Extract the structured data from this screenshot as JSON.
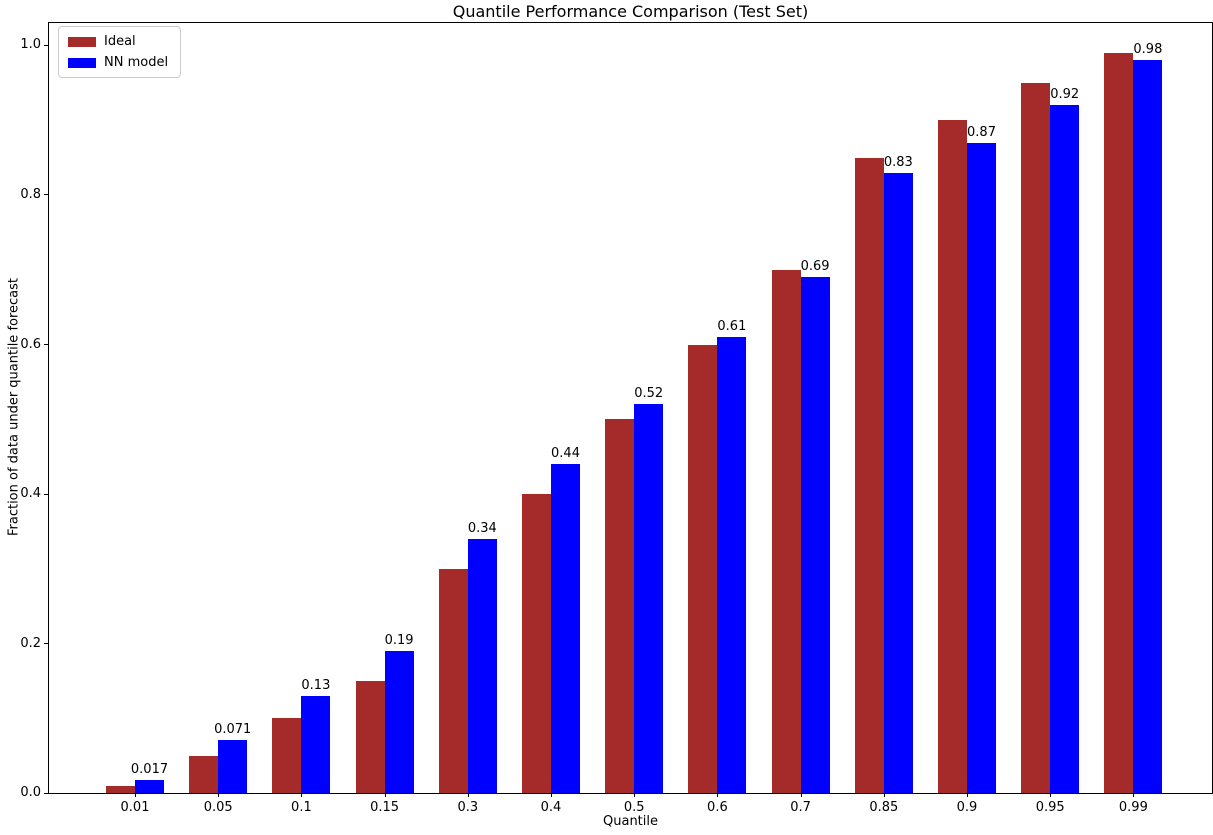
{
  "chart_data": {
    "type": "bar",
    "title": "Quantile Performance Comparison (Test Set)",
    "xlabel": "Quantile",
    "ylabel": "Fraction of data under quantile forecast",
    "categories": [
      "0.01",
      "0.05",
      "0.1",
      "0.15",
      "0.3",
      "0.4",
      "0.5",
      "0.6",
      "0.7",
      "0.85",
      "0.9",
      "0.95",
      "0.99"
    ],
    "series": [
      {
        "name": "Ideal",
        "color": "#a52a2a",
        "values": [
          0.01,
          0.05,
          0.1,
          0.15,
          0.3,
          0.4,
          0.5,
          0.6,
          0.7,
          0.85,
          0.9,
          0.95,
          0.99
        ]
      },
      {
        "name": "NN model",
        "color": "#0000ff",
        "values": [
          0.017,
          0.071,
          0.13,
          0.19,
          0.34,
          0.44,
          0.52,
          0.61,
          0.69,
          0.83,
          0.87,
          0.92,
          0.98
        ]
      }
    ],
    "bar_labels": [
      "0.017",
      "0.071",
      "0.13",
      "0.19",
      "0.34",
      "0.44",
      "0.52",
      "0.61",
      "0.69",
      "0.83",
      "0.87",
      "0.92",
      "0.98"
    ],
    "ytick_labels": [
      "0.0",
      "0.2",
      "0.4",
      "0.6",
      "0.8",
      "1.0"
    ],
    "yticks": [
      0.0,
      0.2,
      0.4,
      0.6,
      0.8,
      1.0
    ],
    "ylim": [
      0,
      1.03
    ],
    "grid": false,
    "legend_position": "upper-left",
    "background_color": "#ffffff",
    "axis_color": "#000000"
  }
}
